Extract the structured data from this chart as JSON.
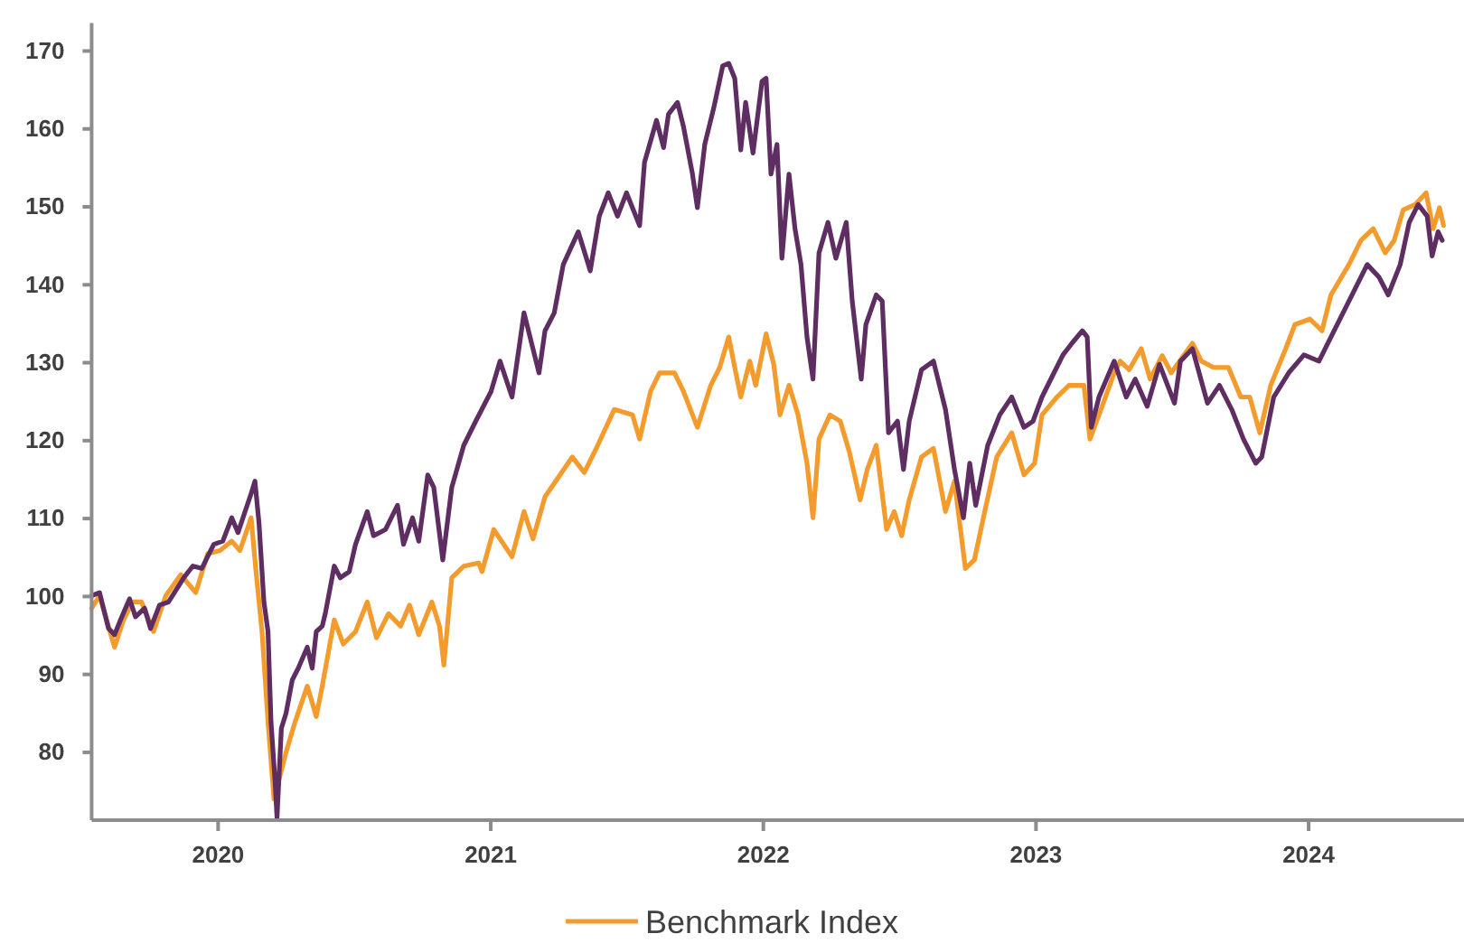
{
  "chart_data": {
    "type": "line",
    "xlim": [
      2019.536,
      2024.57
    ],
    "xticks": [
      2020,
      2021,
      2022,
      2023,
      2024
    ],
    "ylim": [
      71.3,
      173.6
    ],
    "yticks": [
      80,
      90,
      100,
      110,
      120,
      130,
      140,
      150,
      160,
      170
    ],
    "grid": false,
    "legend": "bottom",
    "series": [
      {
        "color": "#5e2d61",
        "x": [
          2019.536,
          2019.565,
          2019.598,
          2019.62,
          2019.642,
          2019.675,
          2019.697,
          2019.73,
          2019.752,
          2019.785,
          2019.818,
          2019.874,
          2019.907,
          2019.94,
          2019.984,
          2020.017,
          2020.05,
          2020.073,
          2020.095,
          2020.121,
          2020.135,
          2020.15,
          2020.168,
          2020.183,
          2020.194,
          2020.209,
          2020.216,
          2020.232,
          2020.249,
          2020.272,
          2020.294,
          2020.327,
          2020.345,
          2020.36,
          2020.382,
          2020.393,
          2020.426,
          2020.448,
          2020.481,
          2020.504,
          2020.547,
          2020.57,
          2020.614,
          2020.658,
          2020.68,
          2020.713,
          2020.736,
          2020.769,
          2020.791,
          2020.824,
          2020.857,
          2020.901,
          2020.945,
          2021.001,
          2021.034,
          2021.078,
          2021.122,
          2021.177,
          2021.199,
          2021.233,
          2021.266,
          2021.321,
          2021.365,
          2021.398,
          2021.431,
          2021.465,
          2021.498,
          2021.546,
          2021.564,
          2021.608,
          2021.634,
          2021.652,
          2021.685,
          2021.707,
          2021.74,
          2021.758,
          2021.785,
          2021.818,
          2021.851,
          2021.873,
          2021.895,
          2021.917,
          2021.935,
          2021.962,
          2021.995,
          2022.01,
          2022.028,
          2022.05,
          2022.068,
          2022.094,
          2022.116,
          2022.138,
          2022.16,
          2022.182,
          2022.204,
          2022.237,
          2022.266,
          2022.304,
          2022.326,
          2022.359,
          2022.376,
          2022.414,
          2022.436,
          2022.459,
          2022.492,
          2022.514,
          2022.535,
          2022.58,
          2022.624,
          2022.668,
          2022.701,
          2022.734,
          2022.757,
          2022.779,
          2022.823,
          2022.867,
          2022.911,
          2022.956,
          2022.989,
          2023.022,
          2023.066,
          2023.099,
          2023.132,
          2023.17,
          2023.188,
          2023.203,
          2023.231,
          2023.287,
          2023.331,
          2023.364,
          2023.408,
          2023.453,
          2023.508,
          2023.53,
          2023.574,
          2023.629,
          2023.673,
          2023.718,
          2023.761,
          2023.806,
          2023.828,
          2023.872,
          2023.927,
          2023.983,
          2024.038,
          2024.082,
          2024.148,
          2024.215,
          2024.258,
          2024.292,
          2024.336,
          2024.369,
          2024.402,
          2024.435,
          2024.453,
          2024.475,
          2024.49
        ],
        "values": [
          100.1,
          100.5,
          95.9,
          95.1,
          97.0,
          99.7,
          97.4,
          98.5,
          95.9,
          98.9,
          99.3,
          102.4,
          103.9,
          103.6,
          106.7,
          107.1,
          110.1,
          108.2,
          110.5,
          113.2,
          114.8,
          109.4,
          99.3,
          95.5,
          83.9,
          76.2,
          71.6,
          83.1,
          85.0,
          89.3,
          90.8,
          93.5,
          90.8,
          95.5,
          96.2,
          97.8,
          103.9,
          102.4,
          103.2,
          106.7,
          110.9,
          107.8,
          108.6,
          111.7,
          106.7,
          110.1,
          107.1,
          115.6,
          114.0,
          104.7,
          114.0,
          119.4,
          122.5,
          126.3,
          130.2,
          125.6,
          136.4,
          128.7,
          134.1,
          136.4,
          142.6,
          146.8,
          141.8,
          148.8,
          151.8,
          148.8,
          151.8,
          147.6,
          155.7,
          161.1,
          157.6,
          161.9,
          163.4,
          160.3,
          154.2,
          149.9,
          158.0,
          162.7,
          168.1,
          168.4,
          166.5,
          157.3,
          163.4,
          156.9,
          166.1,
          166.5,
          154.2,
          158.0,
          143.4,
          154.2,
          147.2,
          142.6,
          133.3,
          127.9,
          144.1,
          148.0,
          143.4,
          148.0,
          137.9,
          127.9,
          134.9,
          138.7,
          137.9,
          121.0,
          122.5,
          116.3,
          122.5,
          129.1,
          130.2,
          124.0,
          116.3,
          110.1,
          117.1,
          111.7,
          119.4,
          123.3,
          125.6,
          121.7,
          122.5,
          125.6,
          128.7,
          131.0,
          132.5,
          134.1,
          133.3,
          121.7,
          125.6,
          130.2,
          125.6,
          127.9,
          124.4,
          129.8,
          124.8,
          130.2,
          131.8,
          124.8,
          127.1,
          124.0,
          120.2,
          117.1,
          117.9,
          125.6,
          128.7,
          131.0,
          130.2,
          133.3,
          137.9,
          142.6,
          141.0,
          138.7,
          142.6,
          148.0,
          150.3,
          148.8,
          143.7,
          146.8,
          145.7
        ]
      },
      {
        "name": "Benchmark Index",
        "color": "#f39c2d",
        "x": [
          2019.536,
          2019.565,
          2019.62,
          2019.653,
          2019.686,
          2019.719,
          2019.763,
          2019.808,
          2019.863,
          2019.918,
          2019.962,
          2020.007,
          2020.05,
          2020.08,
          2020.121,
          2020.139,
          2020.161,
          2020.183,
          2020.205,
          2020.249,
          2020.282,
          2020.327,
          2020.36,
          2020.382,
          2020.426,
          2020.459,
          2020.504,
          2020.547,
          2020.581,
          2020.625,
          2020.669,
          2020.702,
          2020.736,
          2020.784,
          2020.812,
          2020.828,
          2020.857,
          2020.901,
          2020.956,
          2020.968,
          2021.011,
          2021.078,
          2021.122,
          2021.155,
          2021.199,
          2021.254,
          2021.299,
          2021.343,
          2021.387,
          2021.453,
          2021.52,
          2021.546,
          2021.586,
          2021.619,
          2021.674,
          2021.707,
          2021.758,
          2021.807,
          2021.84,
          2021.873,
          2021.895,
          2021.917,
          2021.95,
          2021.972,
          2022.01,
          2022.038,
          2022.061,
          2022.094,
          2022.127,
          2022.16,
          2022.182,
          2022.204,
          2022.244,
          2022.282,
          2022.315,
          2022.355,
          2022.381,
          2022.414,
          2022.452,
          2022.48,
          2022.507,
          2022.535,
          2022.58,
          2022.624,
          2022.668,
          2022.701,
          2022.741,
          2022.774,
          2022.812,
          2022.856,
          2022.911,
          2022.956,
          2022.995,
          2023.022,
          2023.077,
          2023.121,
          2023.176,
          2023.198,
          2023.231,
          2023.287,
          2023.309,
          2023.342,
          2023.386,
          2023.419,
          2023.463,
          2023.496,
          2023.574,
          2023.607,
          2023.651,
          2023.706,
          2023.751,
          2023.784,
          2023.821,
          2023.861,
          2023.916,
          2023.95,
          2024.005,
          2024.049,
          2024.082,
          2024.148,
          2024.192,
          2024.237,
          2024.281,
          2024.314,
          2024.347,
          2024.391,
          2024.431,
          2024.457,
          2024.48,
          2024.495
        ],
        "values": [
          98.5,
          100.1,
          93.5,
          97.0,
          99.3,
          99.3,
          95.5,
          100.1,
          102.8,
          100.5,
          105.5,
          105.9,
          107.1,
          105.9,
          110.1,
          103.2,
          95.5,
          83.9,
          74.0,
          80.0,
          83.9,
          88.5,
          84.6,
          88.5,
          97.0,
          93.9,
          95.5,
          99.3,
          94.7,
          97.8,
          96.2,
          98.9,
          95.1,
          99.3,
          96.2,
          91.2,
          102.4,
          103.9,
          104.3,
          103.2,
          108.6,
          105.1,
          110.9,
          107.4,
          112.8,
          115.6,
          117.9,
          115.9,
          119.0,
          124.0,
          123.3,
          120.2,
          126.3,
          128.7,
          128.7,
          126.3,
          121.7,
          127.1,
          129.4,
          133.3,
          129.4,
          125.6,
          130.2,
          127.1,
          133.7,
          129.8,
          123.3,
          127.1,
          123.3,
          117.1,
          110.1,
          120.2,
          123.3,
          122.5,
          118.6,
          112.4,
          116.3,
          119.4,
          108.6,
          110.9,
          107.8,
          112.4,
          117.9,
          119.0,
          110.9,
          114.8,
          103.6,
          104.7,
          110.9,
          117.9,
          121.0,
          115.6,
          117.1,
          123.3,
          125.6,
          127.1,
          127.1,
          120.2,
          123.3,
          128.7,
          130.2,
          129.1,
          131.8,
          127.9,
          130.9,
          128.7,
          132.5,
          130.2,
          129.4,
          129.4,
          125.6,
          125.6,
          121.0,
          127.1,
          131.8,
          134.9,
          135.6,
          134.1,
          138.7,
          142.6,
          145.7,
          147.2,
          144.1,
          145.7,
          149.6,
          150.3,
          151.8,
          147.2,
          149.9,
          147.6
        ]
      }
    ]
  }
}
